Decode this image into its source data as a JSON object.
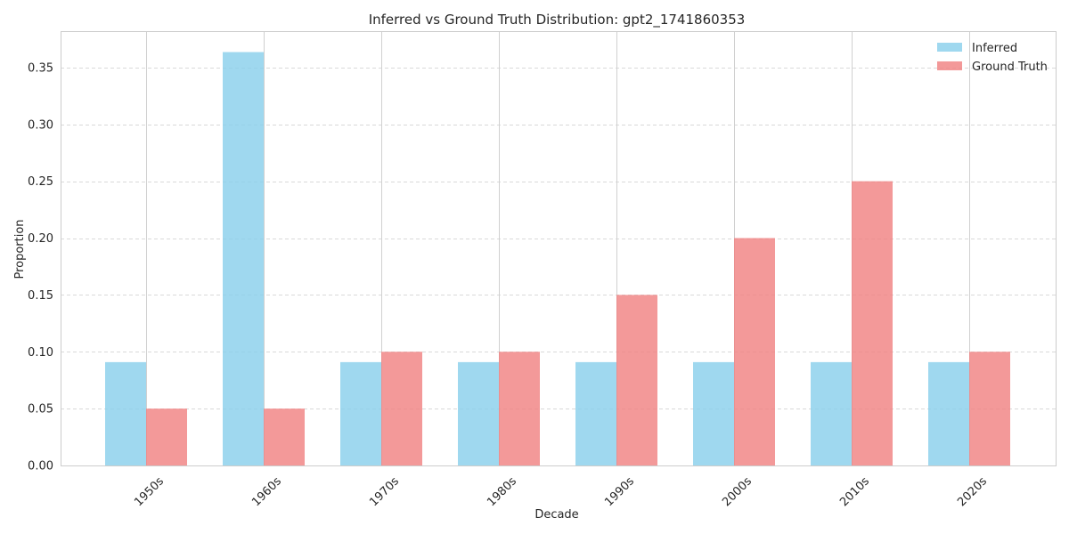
{
  "chart_data": {
    "type": "bar",
    "title": "Inferred vs Ground Truth Distribution: gpt2_1741860353",
    "xlabel": "Decade",
    "ylabel": "Proportion",
    "categories": [
      "1950s",
      "1960s",
      "1970s",
      "1980s",
      "1990s",
      "2000s",
      "2010s",
      "2020s"
    ],
    "series": [
      {
        "name": "Inferred",
        "values": [
          0.0909,
          0.3636,
          0.0909,
          0.0909,
          0.0909,
          0.0909,
          0.0909,
          0.0909
        ],
        "color": "#87ceeb"
      },
      {
        "name": "Ground Truth",
        "values": [
          0.05,
          0.05,
          0.1,
          0.1,
          0.15,
          0.2,
          0.25,
          0.1
        ],
        "color": "#f08080"
      }
    ],
    "ylim": [
      0,
      0.382
    ],
    "yticks": [
      0.0,
      0.05,
      0.1,
      0.15,
      0.2,
      0.25,
      0.3,
      0.35
    ],
    "ytick_labels": [
      "0.00",
      "0.05",
      "0.10",
      "0.15",
      "0.20",
      "0.25",
      "0.30",
      "0.35"
    ],
    "grid": true,
    "legend_position": "top-right",
    "xtick_rotation": 45
  }
}
